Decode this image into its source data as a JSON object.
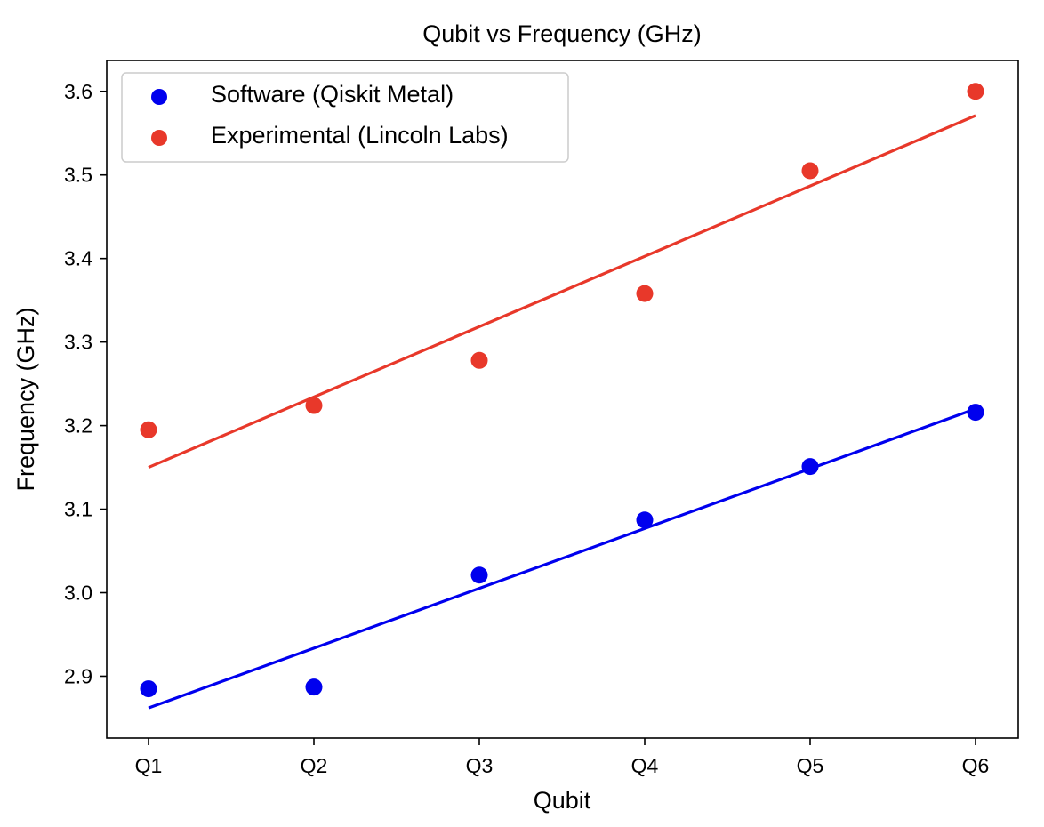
{
  "chart_data": {
    "type": "scatter",
    "title": "Qubit vs Frequency (GHz)",
    "xlabel": "Qubit",
    "ylabel": "Frequency (GHz)",
    "categories": [
      "Q1",
      "Q2",
      "Q3",
      "Q4",
      "Q5",
      "Q6"
    ],
    "ylim": [
      2.826,
      3.637
    ],
    "yticks": [
      "2.9",
      "3.0",
      "3.1",
      "3.2",
      "3.3",
      "3.4",
      "3.5",
      "3.6"
    ],
    "grid": false,
    "legend_position": "top-left",
    "series": [
      {
        "name": "Software (Qiskit Metal)",
        "color": "#0000ee",
        "values": [
          2.885,
          2.887,
          3.021,
          3.087,
          3.151,
          3.216
        ],
        "trendline": [
          2.862,
          3.22
        ]
      },
      {
        "name": "Experimental (Lincoln Labs)",
        "color": "#e8382a",
        "values": [
          3.195,
          3.224,
          3.278,
          3.358,
          3.505,
          3.6
        ],
        "trendline": [
          3.15,
          3.571
        ]
      }
    ]
  }
}
